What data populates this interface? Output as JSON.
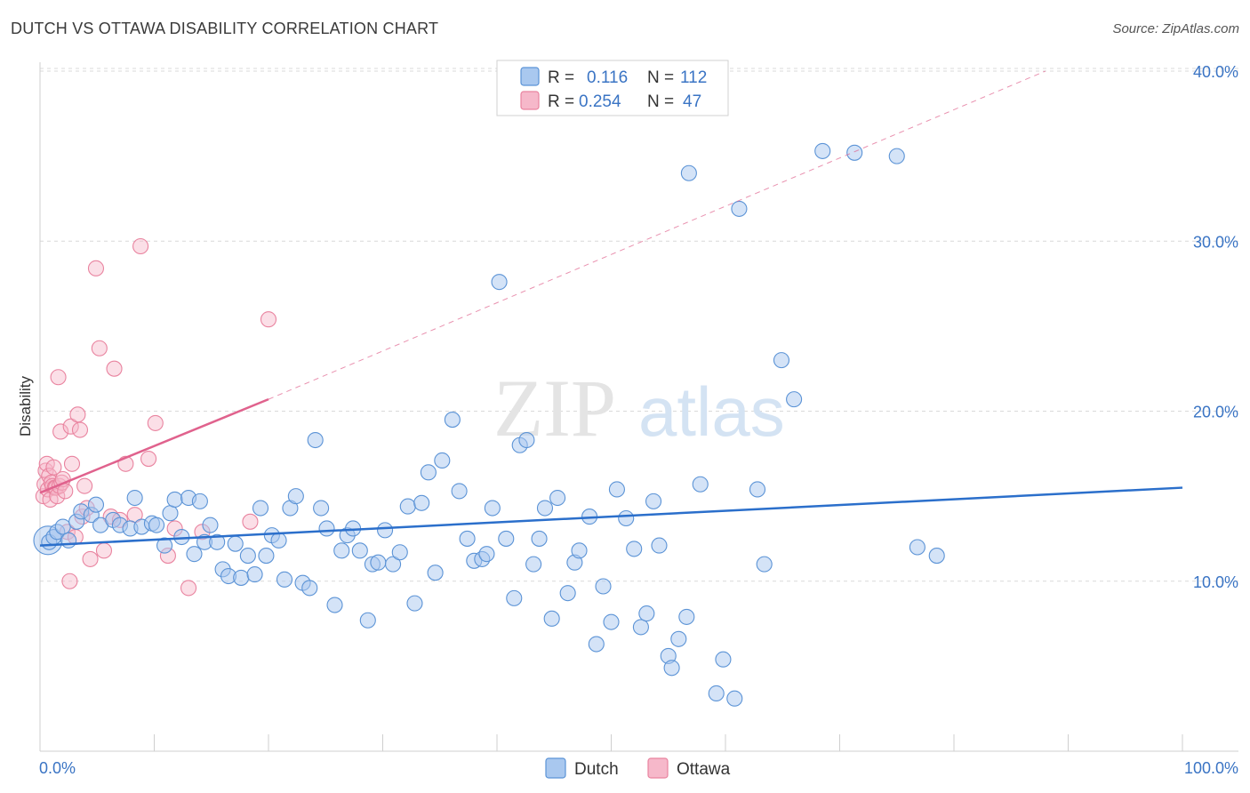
{
  "header": {
    "title": "DUTCH VS OTTAWA DISABILITY CORRELATION CHART",
    "source": "Source: ZipAtlas.com"
  },
  "watermark": {
    "zip": "ZIP",
    "atlas": "atlas"
  },
  "colors": {
    "dutch_fill": "#a9c8ef",
    "dutch_stroke": "#5b93d6",
    "dutch_line": "#2b6fcb",
    "ottawa_fill": "#f6b8ca",
    "ottawa_stroke": "#e9839f",
    "ottawa_line": "#e0628d",
    "tick_text": "#3a74c4",
    "grid": "#d9d9d9"
  },
  "chart_data": {
    "type": "scatter",
    "title": "DUTCH VS OTTAWA DISABILITY CORRELATION CHART",
    "xlabel": "",
    "ylabel": "Disability",
    "xlim": [
      0,
      100
    ],
    "ylim": [
      0,
      40
    ],
    "x_tick_labels": [
      "0.0%",
      "100.0%"
    ],
    "y_ticks": [
      10,
      20,
      30,
      40
    ],
    "y_tick_labels": [
      "10.0%",
      "20.0%",
      "30.0%",
      "40.0%"
    ],
    "grid": "horizontal dashed",
    "legend_top": [
      {
        "r_label": "R =",
        "r_value": "0.116",
        "n_label": "N =",
        "n_value": "112"
      },
      {
        "r_label": "R =",
        "r_value": "0.254",
        "n_label": "N =",
        "n_value": "47"
      }
    ],
    "legend_bottom": [
      "Dutch",
      "Ottawa"
    ],
    "series": [
      {
        "name": "Dutch",
        "trend": {
          "x": [
            0,
            100
          ],
          "y": [
            12.1,
            15.5
          ],
          "dashed_extension": false
        },
        "points": [
          [
            0.8,
            12.3
          ],
          [
            1.2,
            12.6
          ],
          [
            1.5,
            12.9
          ],
          [
            2.0,
            13.2
          ],
          [
            2.5,
            12.4
          ],
          [
            3.2,
            13.5
          ],
          [
            3.6,
            14.1
          ],
          [
            4.5,
            13.9
          ],
          [
            4.9,
            14.5
          ],
          [
            5.3,
            13.3
          ],
          [
            6.4,
            13.6
          ],
          [
            7.0,
            13.3
          ],
          [
            7.9,
            13.1
          ],
          [
            8.3,
            14.9
          ],
          [
            8.9,
            13.2
          ],
          [
            9.8,
            13.4
          ],
          [
            10.2,
            13.3
          ],
          [
            10.9,
            12.1
          ],
          [
            11.4,
            14.0
          ],
          [
            11.8,
            14.8
          ],
          [
            12.4,
            12.6
          ],
          [
            13.0,
            14.9
          ],
          [
            13.5,
            11.6
          ],
          [
            14.0,
            14.7
          ],
          [
            14.4,
            12.3
          ],
          [
            14.9,
            13.3
          ],
          [
            15.5,
            12.3
          ],
          [
            16.0,
            10.7
          ],
          [
            16.5,
            10.3
          ],
          [
            17.1,
            12.2
          ],
          [
            17.6,
            10.2
          ],
          [
            18.2,
            11.5
          ],
          [
            18.8,
            10.4
          ],
          [
            19.3,
            14.3
          ],
          [
            19.8,
            11.5
          ],
          [
            20.3,
            12.7
          ],
          [
            20.9,
            12.4
          ],
          [
            21.4,
            10.1
          ],
          [
            21.9,
            14.3
          ],
          [
            22.4,
            15.0
          ],
          [
            23.0,
            9.9
          ],
          [
            23.6,
            9.6
          ],
          [
            24.1,
            18.3
          ],
          [
            24.6,
            14.3
          ],
          [
            25.1,
            13.1
          ],
          [
            25.8,
            8.6
          ],
          [
            26.4,
            11.8
          ],
          [
            26.9,
            12.7
          ],
          [
            27.4,
            13.1
          ],
          [
            28.0,
            11.8
          ],
          [
            28.7,
            7.7
          ],
          [
            29.1,
            11.0
          ],
          [
            29.6,
            11.1
          ],
          [
            30.2,
            13.0
          ],
          [
            30.9,
            11.0
          ],
          [
            31.5,
            11.7
          ],
          [
            32.2,
            14.4
          ],
          [
            32.8,
            8.7
          ],
          [
            33.4,
            14.6
          ],
          [
            34.0,
            16.4
          ],
          [
            34.6,
            10.5
          ],
          [
            35.2,
            17.1
          ],
          [
            36.1,
            19.5
          ],
          [
            36.7,
            15.3
          ],
          [
            37.4,
            12.5
          ],
          [
            38.0,
            11.2
          ],
          [
            38.7,
            11.3
          ],
          [
            39.1,
            11.6
          ],
          [
            39.6,
            14.3
          ],
          [
            40.2,
            27.6
          ],
          [
            40.8,
            12.5
          ],
          [
            41.5,
            9.0
          ],
          [
            42.0,
            18.0
          ],
          [
            42.6,
            18.3
          ],
          [
            43.2,
            11.0
          ],
          [
            43.7,
            12.5
          ],
          [
            44.2,
            14.3
          ],
          [
            44.8,
            7.8
          ],
          [
            45.3,
            14.9
          ],
          [
            46.2,
            9.3
          ],
          [
            46.8,
            11.1
          ],
          [
            47.2,
            11.8
          ],
          [
            48.1,
            13.8
          ],
          [
            48.7,
            6.3
          ],
          [
            49.3,
            9.7
          ],
          [
            50.0,
            7.6
          ],
          [
            50.5,
            15.4
          ],
          [
            51.3,
            13.7
          ],
          [
            52.0,
            11.9
          ],
          [
            52.6,
            7.3
          ],
          [
            53.1,
            8.1
          ],
          [
            53.7,
            14.7
          ],
          [
            54.2,
            12.1
          ],
          [
            55.0,
            5.6
          ],
          [
            55.3,
            4.9
          ],
          [
            55.9,
            6.6
          ],
          [
            56.6,
            7.9
          ],
          [
            56.8,
            34.0
          ],
          [
            57.8,
            15.7
          ],
          [
            59.2,
            3.4
          ],
          [
            59.8,
            5.4
          ],
          [
            60.8,
            3.1
          ],
          [
            61.2,
            31.9
          ],
          [
            62.8,
            15.4
          ],
          [
            63.4,
            11.0
          ],
          [
            64.9,
            23.0
          ],
          [
            66.0,
            20.7
          ],
          [
            68.5,
            35.3
          ],
          [
            71.3,
            35.2
          ],
          [
            75.0,
            35.0
          ],
          [
            76.8,
            12.0
          ],
          [
            78.5,
            11.5
          ]
        ]
      },
      {
        "name": "Ottawa",
        "trend": {
          "x": [
            0,
            20
          ],
          "y": [
            15.2,
            20.7
          ],
          "dashed_extension": true,
          "extension_to": [
            88,
            40
          ]
        },
        "points": [
          [
            0.3,
            15.0
          ],
          [
            0.4,
            15.7
          ],
          [
            0.5,
            16.5
          ],
          [
            0.6,
            16.9
          ],
          [
            0.7,
            15.4
          ],
          [
            0.8,
            16.2
          ],
          [
            0.9,
            14.8
          ],
          [
            1.0,
            15.8
          ],
          [
            1.1,
            15.6
          ],
          [
            1.2,
            16.7
          ],
          [
            1.3,
            15.5
          ],
          [
            1.4,
            15.5
          ],
          [
            1.5,
            15.0
          ],
          [
            1.6,
            22.0
          ],
          [
            1.7,
            15.6
          ],
          [
            1.8,
            18.8
          ],
          [
            1.9,
            15.8
          ],
          [
            2.0,
            16.0
          ],
          [
            2.2,
            15.3
          ],
          [
            2.4,
            12.9
          ],
          [
            2.6,
            10.0
          ],
          [
            2.7,
            19.1
          ],
          [
            2.8,
            16.9
          ],
          [
            3.1,
            12.6
          ],
          [
            3.3,
            19.8
          ],
          [
            3.5,
            18.9
          ],
          [
            3.7,
            13.8
          ],
          [
            3.9,
            15.6
          ],
          [
            4.1,
            14.3
          ],
          [
            4.4,
            11.3
          ],
          [
            4.9,
            28.4
          ],
          [
            5.2,
            23.7
          ],
          [
            5.6,
            11.8
          ],
          [
            6.2,
            13.8
          ],
          [
            6.5,
            22.5
          ],
          [
            7.0,
            13.6
          ],
          [
            7.5,
            16.9
          ],
          [
            8.3,
            13.9
          ],
          [
            8.8,
            29.7
          ],
          [
            9.5,
            17.2
          ],
          [
            10.1,
            19.3
          ],
          [
            11.2,
            11.5
          ],
          [
            11.8,
            13.1
          ],
          [
            13.0,
            9.6
          ],
          [
            14.2,
            12.9
          ],
          [
            18.4,
            13.5
          ],
          [
            20.0,
            25.4
          ]
        ]
      }
    ]
  }
}
